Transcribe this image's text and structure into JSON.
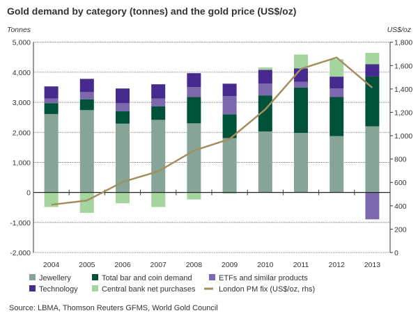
{
  "chart_data": {
    "type": "bar",
    "stacked": true,
    "title": "Gold demand by category (tonnes) and the gold price (US$/oz)",
    "ylabel": "Tonnes",
    "y2label": "US$/oz",
    "categories": [
      "2004",
      "2005",
      "2006",
      "2007",
      "2008",
      "2009",
      "2010",
      "2011",
      "2012",
      "2013"
    ],
    "ylim": [
      -2000,
      5000
    ],
    "yticks": [
      -2000,
      -1000,
      0,
      1000,
      2000,
      3000,
      4000,
      5000
    ],
    "ytick_labels": [
      "-2,000",
      "-1,000",
      "0",
      "1,000",
      "2,000",
      "3,000",
      "4,000",
      "5,000"
    ],
    "y2lim": [
      0,
      1800
    ],
    "y2ticks": [
      0,
      200,
      400,
      600,
      800,
      1000,
      1200,
      1400,
      1600,
      1800
    ],
    "y2tick_labels": [
      "0",
      "200",
      "400",
      "600",
      "800",
      "1,000",
      "1,200",
      "1,400",
      "1,600",
      "1,800"
    ],
    "grid": true,
    "legend_position": "bottom",
    "series": [
      {
        "name": "Jewellery",
        "color": "#86a597",
        "values": [
          2610,
          2740,
          2290,
          2415,
          2300,
          1810,
          2030,
          1980,
          1875,
          2200
        ]
      },
      {
        "name": "Total bar and coin demand",
        "color": "#00513a",
        "values": [
          360,
          360,
          410,
          455,
          880,
          790,
          1200,
          1510,
          1300,
          1660
        ]
      },
      {
        "name": "ETFs and similar products",
        "color": "#7b68ad",
        "values": [
          155,
          240,
          270,
          255,
          330,
          610,
          390,
          190,
          290,
          -895
        ]
      },
      {
        "name": "Technology",
        "color": "#462a8e",
        "values": [
          405,
          440,
          490,
          475,
          460,
          410,
          460,
          450,
          390,
          410
        ]
      },
      {
        "name": "Central bank net purchases",
        "color": "#a4d59e",
        "values": [
          -486,
          -680,
          -360,
          -485,
          -235,
          -40,
          80,
          460,
          580,
          375
        ]
      }
    ],
    "line_series": {
      "name": "London PM fix (US$/oz, rhs)",
      "color": "#a38f5e",
      "axis": "right",
      "values": [
        409,
        445,
        604,
        695,
        872,
        972,
        1225,
        1572,
        1669,
        1411
      ]
    }
  },
  "source": "Source: LBMA, Thomson Reuters GFMS, World Gold Council"
}
